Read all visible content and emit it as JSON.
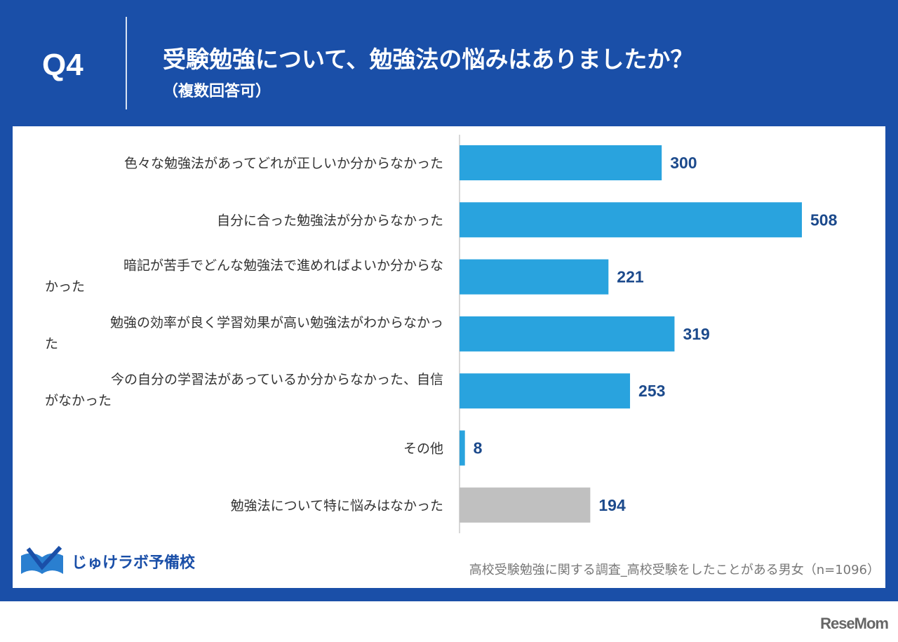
{
  "header": {
    "question_number": "Q4",
    "title": "受験勉強について、勉強法の悩みはありましたか？",
    "subtitle": "（複数回答可）"
  },
  "chart_data": {
    "type": "bar",
    "orientation": "horizontal",
    "categories": [
      [
        "色々な勉強法があってどれが正しいか分からなかった"
      ],
      [
        "自分に合った勉強法が分からなかった"
      ],
      [
        "暗記が苦手でどんな勉強法で進めればよいか分からな",
        "かった"
      ],
      [
        "勉強の効率が良く学習効果が高い勉強法がわからなかっ",
        "た"
      ],
      [
        "今の自分の学習法があっているか分からなかった、自信",
        "がなかった"
      ],
      [
        "その他"
      ],
      [
        "勉強法について特に悩みはなかった"
      ]
    ],
    "values": [
      300,
      508,
      221,
      319,
      253,
      8,
      194
    ],
    "colors": [
      "#29a3de",
      "#29a3de",
      "#29a3de",
      "#29a3de",
      "#29a3de",
      "#29a3de",
      "#c0c0c0"
    ],
    "xlim": [
      0,
      508
    ],
    "grid": false
  },
  "footer": {
    "logo_text": "じゅけラボ予備校",
    "source": "高校受験勉強に関する調査_高校受験をしたことがある男女（n=1096）",
    "watermark": "ReseMom"
  }
}
